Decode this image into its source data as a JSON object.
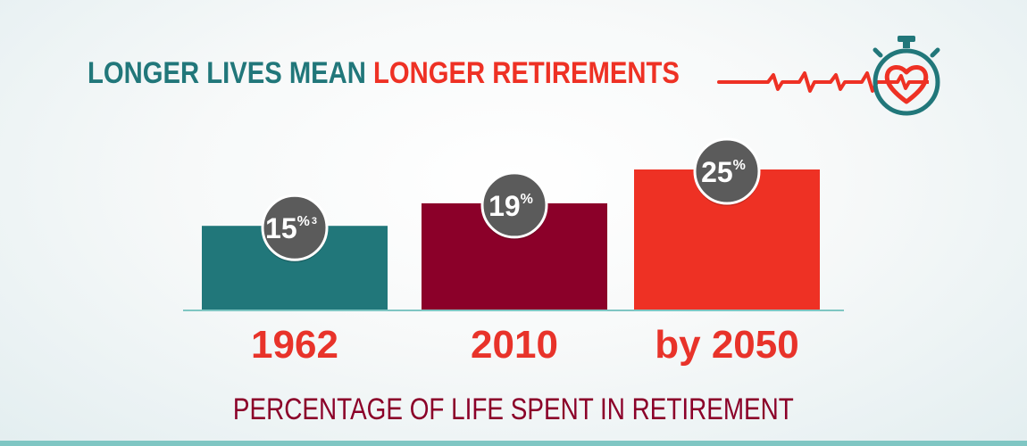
{
  "header": {
    "title_part1": "LONGER LIVES MEAN",
    "title_part2": "LONGER RETIREMENTS",
    "icon": "stopwatch-heart-icon"
  },
  "chart_data": {
    "type": "bar",
    "title": "LONGER LIVES MEAN LONGER RETIREMENTS",
    "xlabel": "PERCENTAGE OF LIFE SPENT IN RETIREMENT",
    "categories": [
      "1962",
      "2010",
      "by 2050"
    ],
    "values": [
      15,
      19,
      25
    ],
    "data_labels": [
      "15",
      "19",
      "25"
    ],
    "label_suffix": "%",
    "footnote_marks": [
      "3",
      "",
      ""
    ],
    "colors": [
      "#21777a",
      "#8b0029",
      "#ee3124"
    ],
    "badge_color": "#5b5b5b",
    "axis_color": "#7fc6c3",
    "category_label_color": "#e8332a",
    "grid": false,
    "legend": "none"
  },
  "caption": "PERCENTAGE OF LIFE SPENT IN RETIREMENT"
}
